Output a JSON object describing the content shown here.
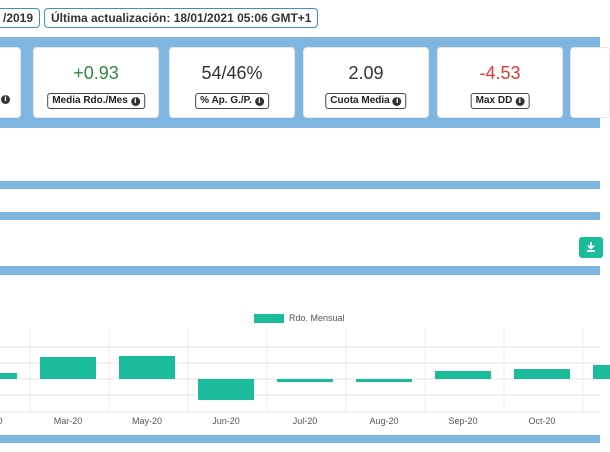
{
  "header": {
    "date_badge": "/2019",
    "update_badge": "Última actualización: 18/01/2021 05:06 GMT+1"
  },
  "stats": [
    {
      "value": "+0.93",
      "label": "Media Rdo./Mes"
    },
    {
      "value": "54/46%",
      "label": "% Ap. G./P."
    },
    {
      "value": "2.09",
      "label": "Cuota Media"
    },
    {
      "value": "-4.53",
      "label": "Max DD"
    }
  ],
  "colors": {
    "band": "#7fb5e1",
    "positive": "#2e8b3e",
    "negative": "#e53935",
    "bar": "#1abc9c"
  },
  "icons": {
    "info": "info-circle-icon",
    "download": "download-icon"
  },
  "chart_data": {
    "type": "bar",
    "legend": "Rdo. Mensual",
    "legend_position": "top",
    "grid": true,
    "series": [
      {
        "name": "Rdo. Mensual",
        "values": [
          0.6,
          2.2,
          2.3,
          -2.1,
          -0.3,
          -0.3,
          0.8,
          1.0,
          1.4
        ]
      }
    ],
    "categories": [
      "0",
      "Mar-20",
      "May-20",
      "Jun-20",
      "Jul-20",
      "Aug-20",
      "Sep-20",
      "Oct-20",
      ""
    ],
    "ylim": [
      -3,
      3
    ]
  }
}
